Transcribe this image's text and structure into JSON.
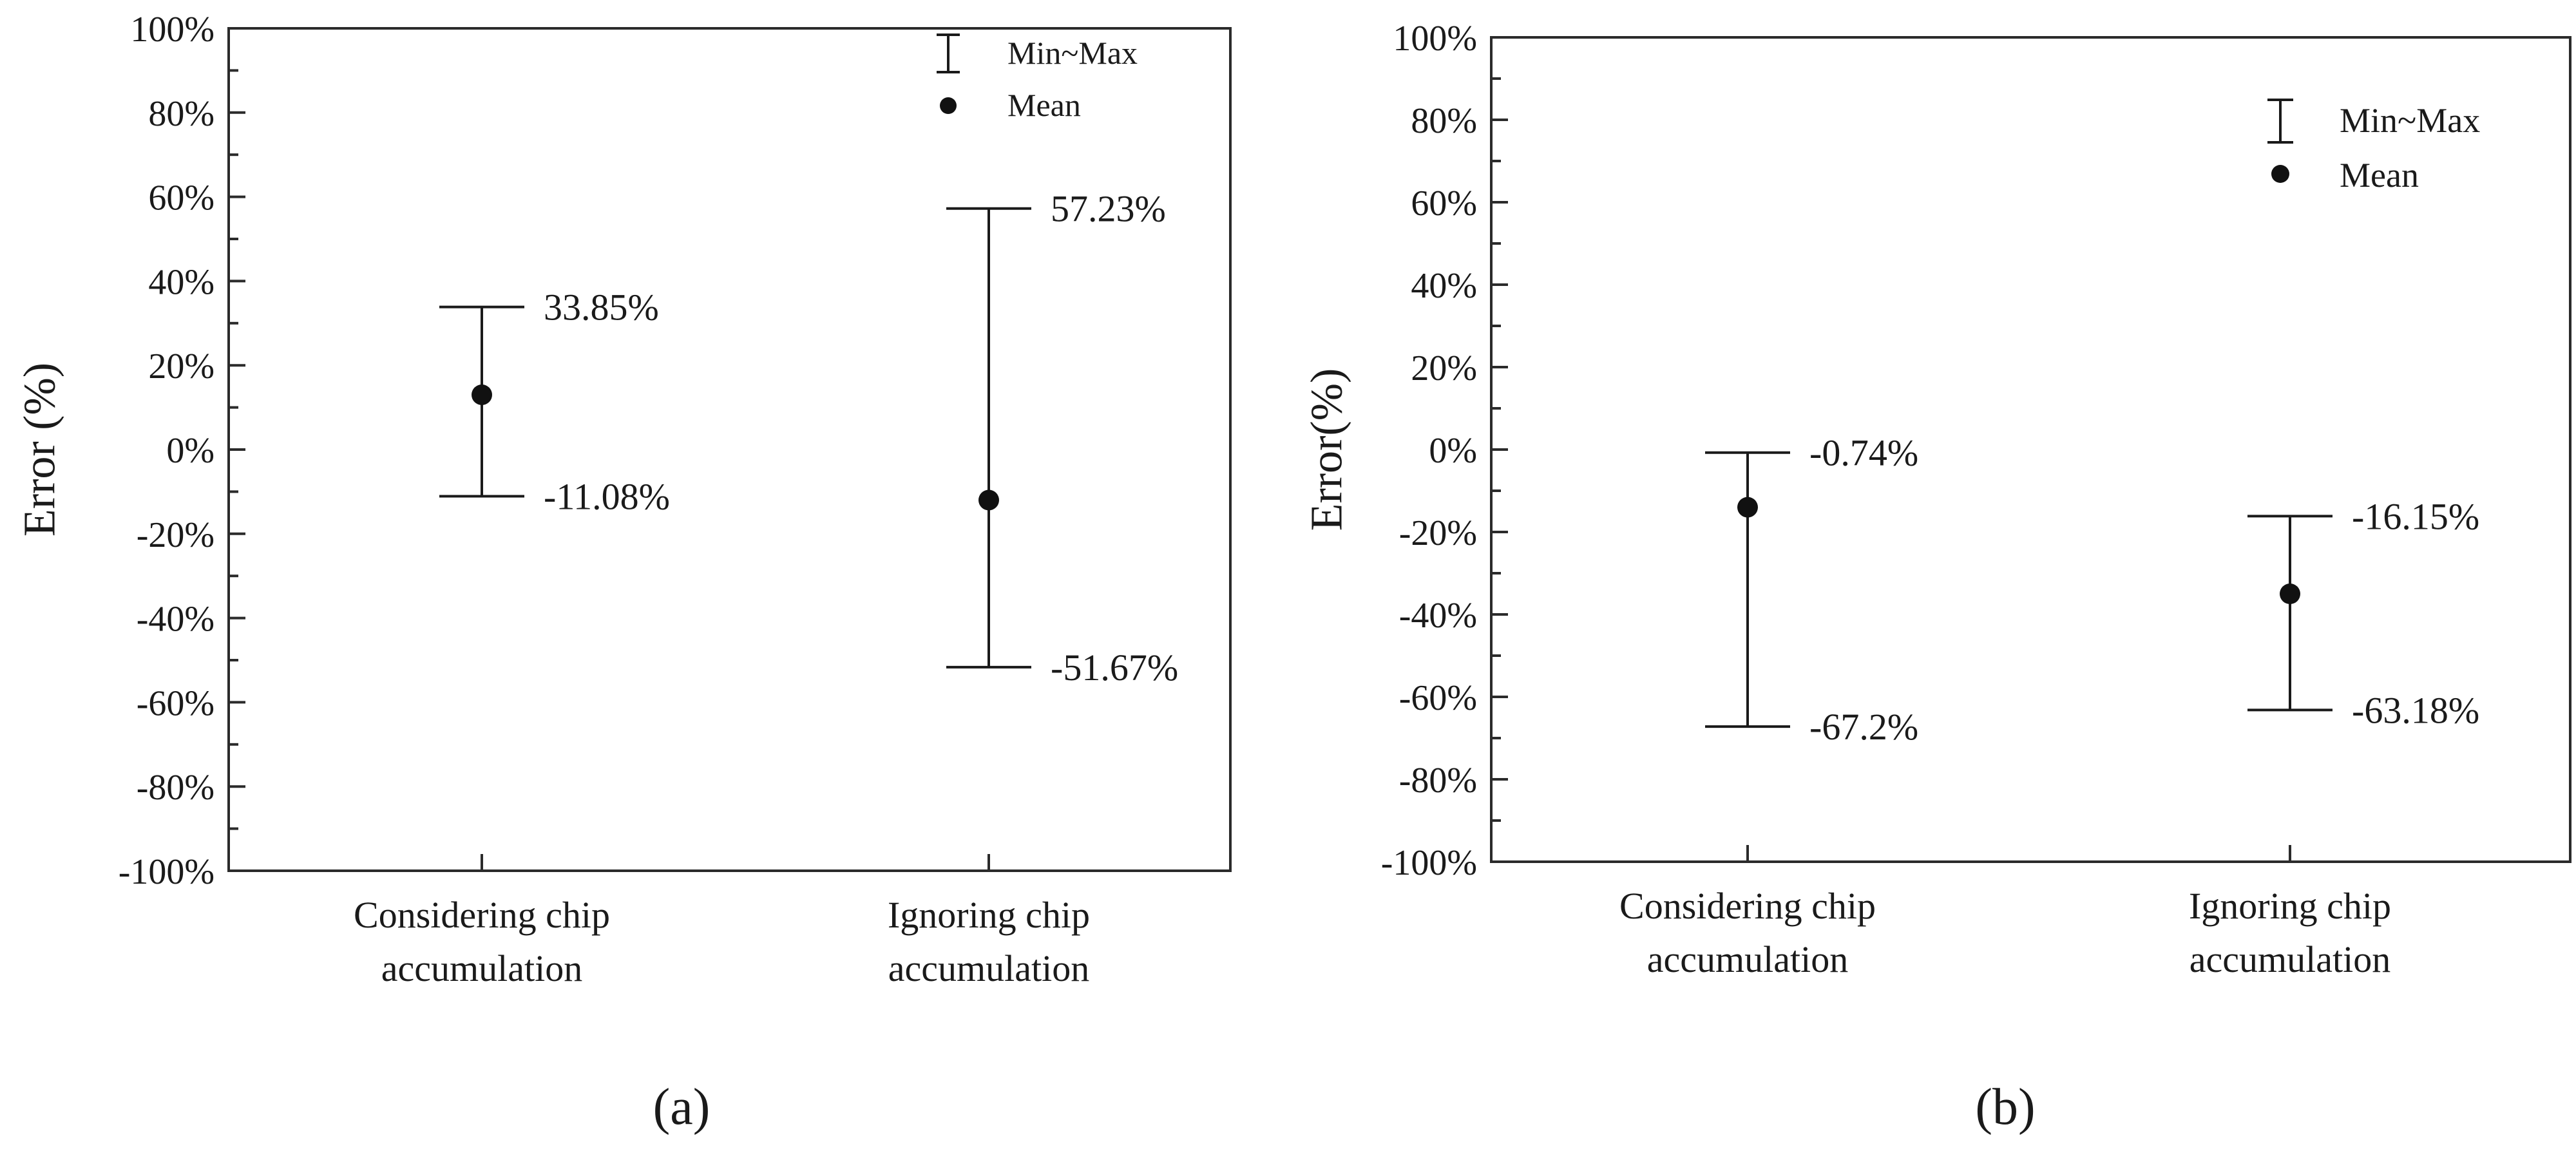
{
  "figure": {
    "panels": [
      {
        "caption": "(a)",
        "ylabel": "Error (%)",
        "legend": {
          "range_label": "Min~Max",
          "mean_label": "Mean",
          "placement": "top-right"
        }
      },
      {
        "caption": "(b)",
        "ylabel": "Error(%)",
        "legend": {
          "range_label": "Min~Max",
          "mean_label": "Mean",
          "placement": "top-right"
        }
      }
    ]
  },
  "chart_data": [
    {
      "type": "scatter",
      "subtype": "min-max error bars with mean point",
      "title": "",
      "xlabel": "",
      "ylabel": "Error (%)",
      "ylim": [
        -100,
        100
      ],
      "yticks": [
        "-100%",
        "-80%",
        "-60%",
        "-40%",
        "-20%",
        "0%",
        "20%",
        "40%",
        "60%",
        "80%",
        "100%"
      ],
      "grid": false,
      "categories": [
        [
          "Considering chip",
          "accumulation"
        ],
        [
          "Ignoring chip",
          "accumulation"
        ]
      ],
      "series": [
        {
          "name": "Min~Max",
          "min": [
            -11.08,
            -51.67
          ],
          "max": [
            33.85,
            57.23
          ]
        },
        {
          "name": "Mean",
          "values": [
            13,
            -12
          ]
        }
      ],
      "annotations": {
        "max": [
          "33.85%",
          "57.23%"
        ],
        "min": [
          "-11.08%",
          "-51.67%"
        ]
      }
    },
    {
      "type": "scatter",
      "subtype": "min-max error bars with mean point",
      "title": "",
      "xlabel": "",
      "ylabel": "Error(%)",
      "ylim": [
        -100,
        100
      ],
      "yticks": [
        "-100%",
        "-80%",
        "-60%",
        "-40%",
        "-20%",
        "0%",
        "20%",
        "40%",
        "60%",
        "80%",
        "100%"
      ],
      "grid": false,
      "categories": [
        [
          "Considering chip",
          "accumulation"
        ],
        [
          "Ignoring chip",
          "accumulation"
        ]
      ],
      "series": [
        {
          "name": "Min~Max",
          "min": [
            -67.2,
            -63.18
          ],
          "max": [
            -0.74,
            -16.15
          ]
        },
        {
          "name": "Mean",
          "values": [
            -14,
            -35
          ]
        }
      ],
      "annotations": {
        "max": [
          "-0.74%",
          "-16.15%"
        ],
        "min": [
          "-67.2%",
          "-63.18%"
        ]
      }
    }
  ]
}
